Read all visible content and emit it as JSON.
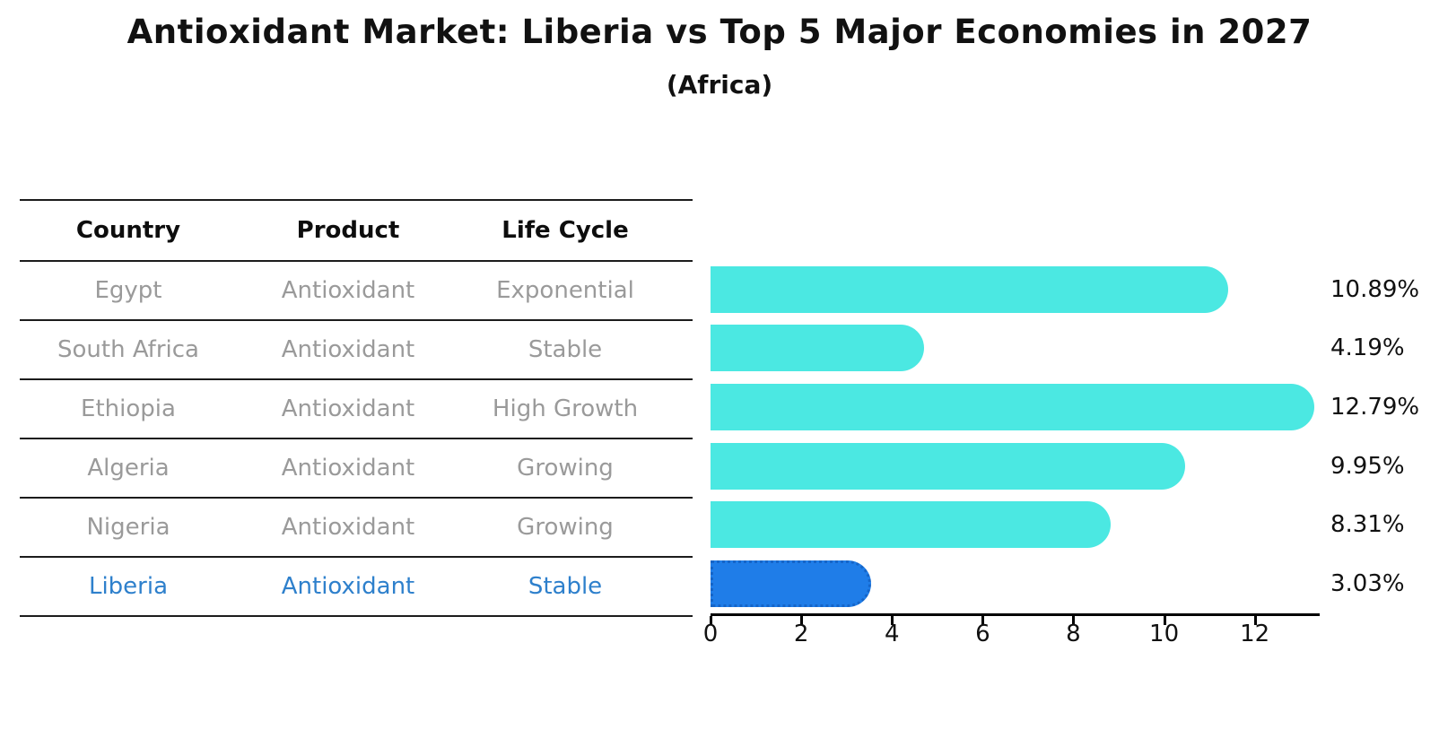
{
  "title": "Antioxidant Market: Liberia vs Top 5 Major Economies in 2027",
  "subtitle": "(Africa)",
  "table": {
    "headers": [
      "Country",
      "Product",
      "Life Cycle"
    ],
    "rows": [
      {
        "country": "Egypt",
        "product": "Antioxidant",
        "life_cycle": "Exponential",
        "highlight": false
      },
      {
        "country": "South Africa",
        "product": "Antioxidant",
        "life_cycle": "Stable",
        "highlight": false
      },
      {
        "country": "Ethiopia",
        "product": "Antioxidant",
        "life_cycle": "High Growth",
        "highlight": false
      },
      {
        "country": "Algeria",
        "product": "Antioxidant",
        "life_cycle": "Growing",
        "highlight": false
      },
      {
        "country": "Nigeria",
        "product": "Antioxidant",
        "life_cycle": "Growing",
        "highlight": true
      }
    ]
  },
  "chart_data": {
    "type": "bar",
    "orientation": "horizontal",
    "title": "Antioxidant Market: Liberia vs Top 5 Major Economies in 2027",
    "subtitle": "(Africa)",
    "categories": [
      "Egypt",
      "South Africa",
      "Ethiopia",
      "Algeria",
      "Nigeria",
      "Liberia"
    ],
    "values": [
      10.89,
      4.19,
      12.79,
      9.95,
      8.31,
      3.03
    ],
    "value_labels": [
      "10.89%",
      "4.19%",
      "12.79%",
      "9.95%",
      "8.31%",
      "3.03%"
    ],
    "unit": "%",
    "xticks": [
      0,
      2,
      4,
      6,
      8,
      10,
      12
    ],
    "xlim": [
      0,
      13.43
    ],
    "grid": false,
    "legend": false,
    "bar_color": "#4be8e2",
    "highlight_color": "#1f7de8",
    "highlight_index": 5,
    "highlight_category": "Liberia",
    "highlight_text_color": "#2e80cc"
  }
}
